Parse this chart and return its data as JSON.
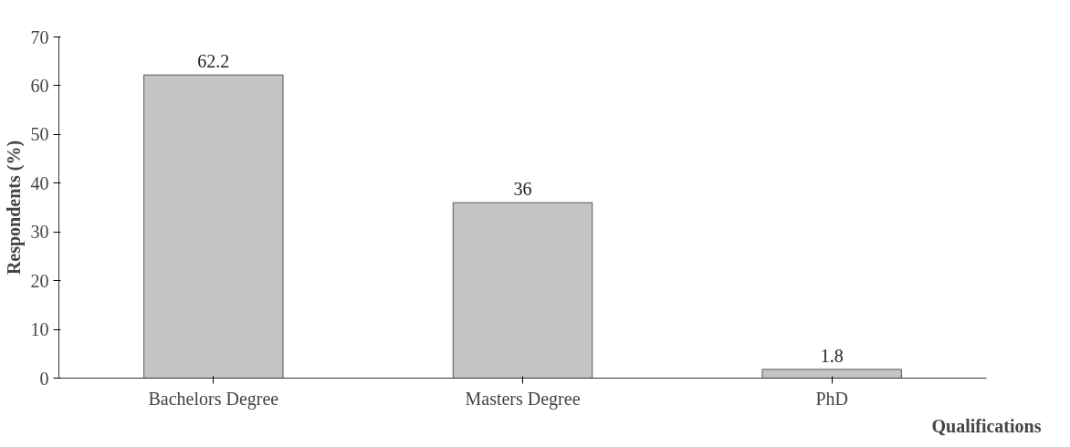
{
  "chart_data": {
    "type": "bar",
    "categories": [
      "Bachelors Degree",
      "Masters Degree",
      "PhD"
    ],
    "values": [
      62.2,
      36,
      1.8
    ],
    "color": "#c4c4c4",
    "xlabel": "Qualifications",
    "ylabel": "Respondents (%)",
    "ylim": [
      0,
      70
    ],
    "yticks": [
      0,
      10,
      20,
      30,
      40,
      50,
      60,
      70
    ],
    "data_labels": true,
    "grid": false
  }
}
